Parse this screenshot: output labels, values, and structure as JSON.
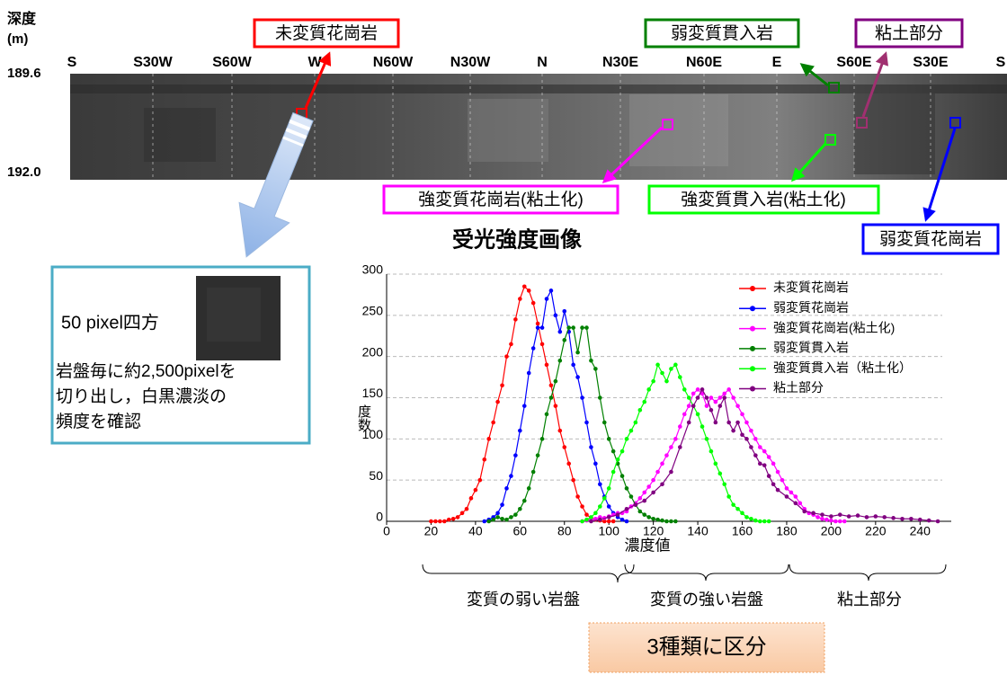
{
  "header": {
    "depth_label": "深度",
    "depth_unit": "(m)",
    "depth_top": "189.6",
    "depth_bottom": "192.0"
  },
  "directions": [
    "S",
    "S30W",
    "S60W",
    "W",
    "N60W",
    "N30W",
    "N",
    "N30E",
    "N60E",
    "E",
    "S60E",
    "S30E",
    "S"
  ],
  "callouts": [
    "未変質花崗岩",
    "弱変質貫入岩",
    "粘土部分",
    "強変質花崗岩(粘土化)",
    "強変質貫入岩(粘土化)",
    "弱変質花崗岩"
  ],
  "image_title": "受光強度画像",
  "sample_box": {
    "size_label": "50 pixel四方",
    "lines": [
      "岩盤毎に約2,500pixelを",
      "切り出し，白黒濃淡の",
      "頻度を確認"
    ]
  },
  "chart_data": {
    "type": "line",
    "xlabel": "濃度値",
    "ylabel": "度数",
    "xlim": [
      0,
      250
    ],
    "xticks": [
      0,
      20,
      40,
      60,
      80,
      100,
      120,
      140,
      160,
      180,
      200,
      220,
      240
    ],
    "ylim": [
      0,
      300
    ],
    "yticks": [
      0,
      50,
      100,
      150,
      200,
      250,
      300
    ],
    "grid": true,
    "legend": "top-right",
    "series": [
      {
        "name": "未変質花崗岩",
        "color": "#ff0000",
        "x": [
          20,
          22,
          24,
          26,
          28,
          30,
          32,
          34,
          36,
          38,
          40,
          42,
          44,
          46,
          48,
          50,
          52,
          54,
          56,
          58,
          60,
          62,
          64,
          66,
          68,
          70,
          72,
          74,
          76,
          78,
          80,
          82,
          84,
          86,
          88,
          90,
          92,
          94,
          96,
          98,
          100,
          102
        ],
        "values": [
          0,
          0,
          0,
          0,
          2,
          3,
          5,
          10,
          15,
          28,
          38,
          50,
          75,
          100,
          120,
          145,
          165,
          200,
          215,
          245,
          270,
          285,
          280,
          265,
          240,
          215,
          190,
          165,
          140,
          110,
          90,
          70,
          50,
          30,
          18,
          8,
          4,
          2,
          1,
          0,
          0,
          0
        ]
      },
      {
        "name": "弱変質花崗岩",
        "color": "#0000ff",
        "x": [
          44,
          46,
          48,
          50,
          52,
          54,
          56,
          58,
          60,
          62,
          64,
          66,
          68,
          70,
          72,
          74,
          76,
          78,
          80,
          82,
          84,
          86,
          88,
          90,
          92,
          94,
          96,
          98,
          100,
          102,
          104,
          106,
          108
        ],
        "values": [
          0,
          2,
          5,
          10,
          20,
          40,
          55,
          80,
          110,
          140,
          180,
          210,
          235,
          235,
          270,
          280,
          250,
          230,
          255,
          230,
          190,
          175,
          150,
          120,
          90,
          70,
          45,
          30,
          18,
          10,
          5,
          2,
          0
        ]
      },
      {
        "name": "強変質花崗岩(粘土化)",
        "color": "#ff00ff",
        "x": [
          88,
          90,
          92,
          94,
          96,
          98,
          100,
          102,
          104,
          106,
          108,
          110,
          112,
          114,
          116,
          118,
          120,
          122,
          124,
          126,
          128,
          130,
          132,
          134,
          136,
          138,
          140,
          142,
          144,
          146,
          148,
          150,
          152,
          154,
          156,
          158,
          160,
          162,
          164,
          166,
          168,
          170,
          172,
          174,
          176,
          178,
          180,
          182,
          184,
          186,
          188,
          190,
          192,
          194,
          196,
          198,
          200,
          202,
          204,
          206
        ],
        "values": [
          0,
          1,
          2,
          3,
          5,
          4,
          6,
          8,
          10,
          10,
          12,
          18,
          22,
          28,
          35,
          42,
          50,
          60,
          70,
          80,
          90,
          100,
          115,
          130,
          140,
          155,
          160,
          155,
          140,
          150,
          145,
          150,
          155,
          160,
          150,
          140,
          130,
          120,
          110,
          100,
          90,
          85,
          78,
          70,
          60,
          50,
          40,
          35,
          30,
          22,
          15,
          10,
          8,
          5,
          3,
          2,
          1,
          0,
          0,
          0
        ]
      },
      {
        "name": "弱変質貫入岩",
        "color": "#008000",
        "x": [
          46,
          48,
          50,
          52,
          54,
          56,
          58,
          60,
          62,
          64,
          66,
          68,
          70,
          72,
          74,
          76,
          78,
          80,
          82,
          84,
          86,
          88,
          90,
          92,
          94,
          96,
          98,
          100,
          102,
          104,
          106,
          108,
          110,
          112,
          114,
          116,
          118,
          120,
          122,
          124,
          126,
          128,
          130
        ],
        "values": [
          0,
          2,
          5,
          3,
          2,
          5,
          8,
          15,
          25,
          40,
          60,
          80,
          100,
          130,
          150,
          170,
          195,
          220,
          235,
          235,
          205,
          235,
          235,
          195,
          185,
          150,
          120,
          100,
          85,
          70,
          55,
          40,
          30,
          20,
          12,
          8,
          5,
          3,
          2,
          1,
          0,
          0,
          0
        ]
      },
      {
        "name": "強変質貫入岩（粘土化）",
        "color": "#00ff00",
        "x": [
          88,
          90,
          92,
          94,
          96,
          98,
          100,
          102,
          104,
          106,
          108,
          110,
          112,
          114,
          116,
          118,
          120,
          122,
          124,
          126,
          128,
          130,
          132,
          134,
          136,
          138,
          140,
          142,
          144,
          146,
          148,
          150,
          152,
          154,
          156,
          158,
          160,
          162,
          164,
          166,
          168,
          170,
          172
        ],
        "values": [
          0,
          2,
          5,
          10,
          18,
          28,
          40,
          60,
          75,
          85,
          100,
          110,
          120,
          135,
          145,
          160,
          170,
          190,
          180,
          170,
          185,
          190,
          175,
          160,
          150,
          140,
          130,
          115,
          100,
          85,
          70,
          58,
          45,
          30,
          20,
          15,
          10,
          5,
          3,
          1,
          0,
          0,
          0
        ]
      },
      {
        "name": "粘土部分",
        "color": "#800080",
        "x": [
          92,
          96,
          100,
          104,
          108,
          112,
          116,
          120,
          124,
          128,
          132,
          136,
          138,
          140,
          142,
          144,
          146,
          148,
          150,
          152,
          154,
          156,
          158,
          160,
          162,
          164,
          166,
          168,
          170,
          172,
          174,
          176,
          180,
          184,
          188,
          192,
          196,
          200,
          204,
          208,
          212,
          216,
          220,
          224,
          228,
          232,
          236,
          240,
          244,
          248
        ],
        "values": [
          0,
          2,
          5,
          8,
          15,
          20,
          25,
          35,
          45,
          60,
          90,
          120,
          140,
          150,
          160,
          150,
          135,
          120,
          140,
          150,
          120,
          110,
          120,
          105,
          100,
          90,
          80,
          70,
          68,
          55,
          45,
          38,
          30,
          22,
          12,
          10,
          8,
          6,
          8,
          6,
          7,
          5,
          6,
          5,
          4,
          3,
          3,
          2,
          1,
          0
        ]
      }
    ],
    "groups": [
      "変質の弱い岩盤",
      "変質の強い岩盤",
      "粘土部分"
    ]
  },
  "conclusion": "3種類に区分"
}
